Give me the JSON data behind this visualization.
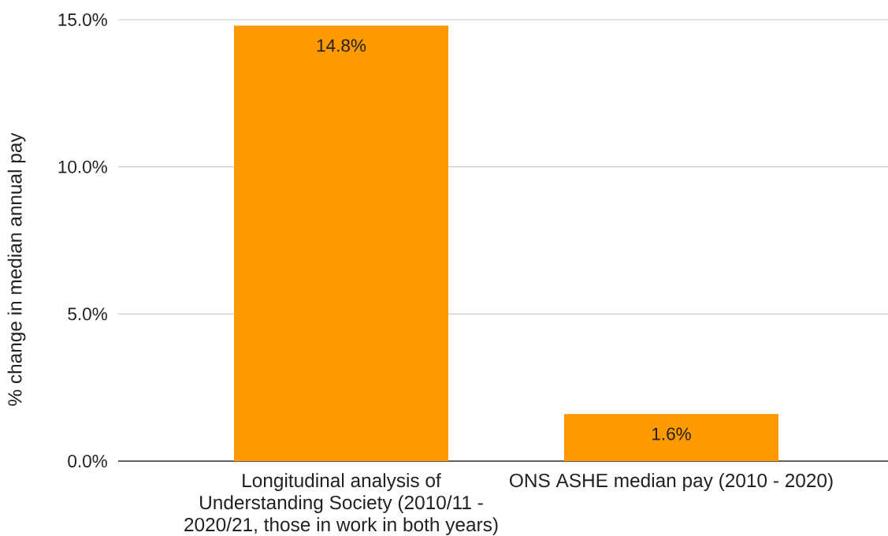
{
  "chart_data": {
    "type": "bar",
    "ylabel": "% change in median annual pay",
    "categories": [
      "Longitudinal analysis of Understanding Society (2010/11 - 2020/21, those in work in both years)",
      "ONS ASHE median pay (2010 - 2020)"
    ],
    "values": [
      14.8,
      1.6
    ],
    "color": "#ff9900",
    "value_labels": [
      "14.8%",
      "1.6%"
    ],
    "ylim": [
      0,
      15
    ],
    "yticks": [
      {
        "value": 0,
        "label": "0.0%"
      },
      {
        "value": 5,
        "label": "5.0%"
      },
      {
        "value": 10,
        "label": "10.0%"
      },
      {
        "value": 15,
        "label": "15.0%"
      }
    ],
    "grid": "y"
  }
}
